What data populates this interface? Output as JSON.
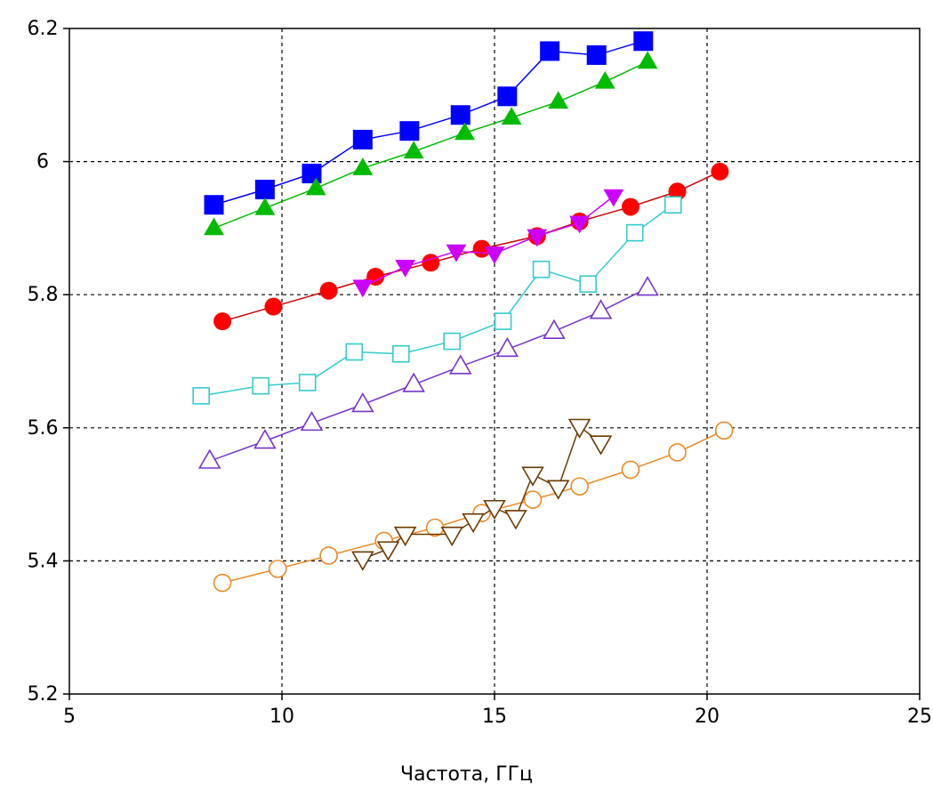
{
  "chart_data": {
    "type": "scatter",
    "title": "",
    "xlabel": "Частота, ГГц",
    "ylabel": "",
    "xlim": [
      5,
      25
    ],
    "ylim": [
      5.2,
      6.2
    ],
    "xticks": [
      "5",
      "10",
      "15",
      "20",
      "25"
    ],
    "yticks": [
      "5.2",
      "5.4",
      "5.6",
      "5.8",
      "6",
      "6.2"
    ],
    "grid": true,
    "legend": "none",
    "series": [
      {
        "marker": "square-filled",
        "color": "#0000ff",
        "line_color": "#0000ff",
        "points": [
          [
            8.4,
            5.935
          ],
          [
            9.6,
            5.958
          ],
          [
            10.7,
            5.982
          ],
          [
            11.9,
            6.033
          ],
          [
            13.0,
            6.046
          ],
          [
            14.2,
            6.07
          ],
          [
            15.3,
            6.098
          ],
          [
            16.3,
            6.166
          ],
          [
            17.4,
            6.16
          ],
          [
            18.5,
            6.181
          ]
        ]
      },
      {
        "marker": "triangle-up-filled",
        "color": "#00bb00",
        "line_color": "#00bb00",
        "points": [
          [
            8.4,
            5.9
          ],
          [
            9.6,
            5.93
          ],
          [
            10.8,
            5.96
          ],
          [
            11.9,
            5.99
          ],
          [
            13.1,
            6.015
          ],
          [
            14.3,
            6.043
          ],
          [
            15.4,
            6.066
          ],
          [
            16.5,
            6.09
          ],
          [
            17.6,
            6.12
          ],
          [
            18.6,
            6.15
          ]
        ]
      },
      {
        "marker": "circle-filled",
        "color": "#ff0000",
        "line_color": "#d00000",
        "points": [
          [
            8.6,
            5.76
          ],
          [
            9.8,
            5.782
          ],
          [
            11.1,
            5.806
          ],
          [
            12.2,
            5.827
          ],
          [
            13.5,
            5.848
          ],
          [
            14.7,
            5.869
          ],
          [
            16.0,
            5.888
          ],
          [
            17.0,
            5.91
          ],
          [
            18.2,
            5.932
          ],
          [
            19.3,
            5.955
          ],
          [
            20.3,
            5.985
          ]
        ]
      },
      {
        "marker": "triangle-down-filled",
        "color": "#cc00ff",
        "line_color": "#cc00ff",
        "points": [
          [
            11.9,
            5.812
          ],
          [
            12.9,
            5.842
          ],
          [
            14.1,
            5.865
          ],
          [
            15.0,
            5.862
          ],
          [
            16.0,
            5.888
          ],
          [
            17.0,
            5.908
          ],
          [
            17.8,
            5.948
          ]
        ]
      },
      {
        "marker": "square-open",
        "color": "#33cccc",
        "line_color": "#33cccc",
        "points": [
          [
            8.1,
            5.648
          ],
          [
            9.5,
            5.663
          ],
          [
            10.6,
            5.668
          ],
          [
            11.7,
            5.714
          ],
          [
            12.8,
            5.711
          ],
          [
            14.0,
            5.73
          ],
          [
            15.2,
            5.76
          ],
          [
            16.1,
            5.838
          ],
          [
            17.2,
            5.816
          ],
          [
            18.3,
            5.893
          ],
          [
            19.2,
            5.935
          ]
        ]
      },
      {
        "marker": "triangle-up-open",
        "color": "#7733cc",
        "line_color": "#7733cc",
        "points": [
          [
            8.3,
            5.55
          ],
          [
            9.6,
            5.58
          ],
          [
            10.7,
            5.607
          ],
          [
            11.9,
            5.635
          ],
          [
            13.1,
            5.665
          ],
          [
            14.2,
            5.692
          ],
          [
            15.3,
            5.718
          ],
          [
            16.4,
            5.745
          ],
          [
            17.5,
            5.775
          ],
          [
            18.6,
            5.81
          ]
        ]
      },
      {
        "marker": "circle-open",
        "color": "#ee8822",
        "line_color": "#ee8822",
        "points": [
          [
            8.6,
            5.367
          ],
          [
            9.9,
            5.388
          ],
          [
            11.1,
            5.408
          ],
          [
            12.4,
            5.43
          ],
          [
            13.6,
            5.45
          ],
          [
            14.7,
            5.472
          ],
          [
            15.9,
            5.492
          ],
          [
            17.0,
            5.512
          ],
          [
            18.2,
            5.537
          ],
          [
            19.3,
            5.563
          ],
          [
            20.4,
            5.596
          ]
        ]
      },
      {
        "marker": "triangle-down-open",
        "color": "#6b3a00",
        "line_color": "#6b3a00",
        "points": [
          [
            11.9,
            5.403
          ],
          [
            12.5,
            5.418
          ],
          [
            12.9,
            5.44
          ],
          [
            14.0,
            5.44
          ],
          [
            14.5,
            5.46
          ],
          [
            15.0,
            5.48
          ],
          [
            15.5,
            5.465
          ],
          [
            15.9,
            5.53
          ],
          [
            16.5,
            5.51
          ],
          [
            17.0,
            5.602
          ],
          [
            17.5,
            5.577
          ]
        ]
      }
    ]
  }
}
